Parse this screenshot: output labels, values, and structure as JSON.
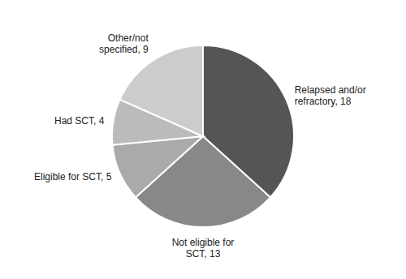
{
  "chart_data": {
    "type": "pie",
    "categories": [
      "Relapsed and/or\nrefractory, 18",
      "Not eligible for\nSCT, 13",
      "Eligible for SCT, 5",
      "Had SCT, 4",
      "Other/not\nspecified, 9"
    ],
    "values": [
      18,
      13,
      5,
      4,
      9
    ],
    "colors": [
      "#555555",
      "#888888",
      "#aaaaaa",
      "#bbbbbb",
      "#cccccc"
    ]
  }
}
